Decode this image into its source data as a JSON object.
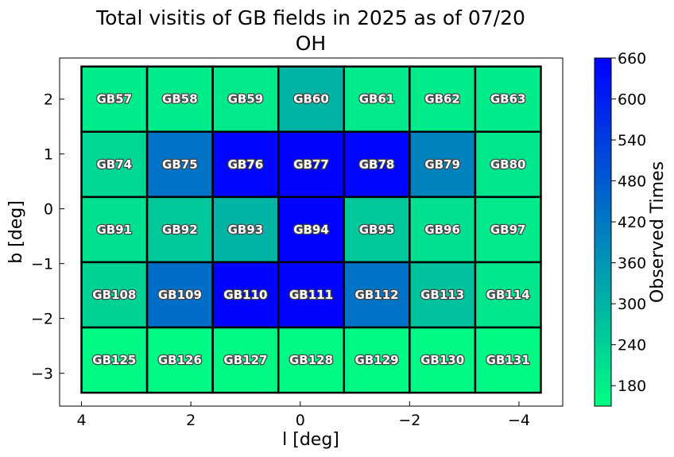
{
  "chart_data": {
    "type": "heatmap",
    "title": "Total visitis of GB fields in 2025 as of 07/20",
    "subtitle": "OH",
    "xlabel": "l [deg]",
    "ylabel": "b [deg]",
    "xlim": [
      4.4,
      -4.8
    ],
    "ylim": [
      -3.6,
      2.75
    ],
    "x_ticks": [
      4,
      2,
      0,
      -2,
      -4
    ],
    "y_ticks": [
      2,
      1,
      0,
      -1,
      -2,
      -3
    ],
    "x_tick_labels": [
      "4",
      "2",
      "0",
      "−2",
      "−4"
    ],
    "y_tick_labels": [
      "2",
      "1",
      "0",
      "−1",
      "−2",
      "−3"
    ],
    "colorbar": {
      "label": "Observed Times",
      "min": 150,
      "max": 660,
      "ticks": [
        180,
        240,
        300,
        360,
        420,
        480,
        540,
        600,
        660
      ],
      "colors": [
        "#00ff80",
        "#0000ff"
      ]
    },
    "cell_width_deg": 1.2,
    "cell_height_deg": 1.19,
    "cells": [
      {
        "name": "GB57",
        "l": 3.4,
        "b": 2.0,
        "value": 190
      },
      {
        "name": "GB58",
        "l": 2.2,
        "b": 2.0,
        "value": 190
      },
      {
        "name": "GB59",
        "l": 1.0,
        "b": 2.0,
        "value": 195
      },
      {
        "name": "GB60",
        "l": -0.2,
        "b": 2.0,
        "value": 300
      },
      {
        "name": "GB61",
        "l": -1.4,
        "b": 2.0,
        "value": 195
      },
      {
        "name": "GB62",
        "l": -2.6,
        "b": 2.0,
        "value": 190
      },
      {
        "name": "GB63",
        "l": -3.8,
        "b": 2.0,
        "value": 190
      },
      {
        "name": "GB74",
        "l": 3.4,
        "b": 0.81,
        "value": 230
      },
      {
        "name": "GB75",
        "l": 2.2,
        "b": 0.81,
        "value": 430
      },
      {
        "name": "GB76",
        "l": 1.0,
        "b": 0.81,
        "value": 650
      },
      {
        "name": "GB77",
        "l": -0.2,
        "b": 0.81,
        "value": 655
      },
      {
        "name": "GB78",
        "l": -1.4,
        "b": 0.81,
        "value": 650
      },
      {
        "name": "GB79",
        "l": -2.6,
        "b": 0.81,
        "value": 400
      },
      {
        "name": "GB80",
        "l": -3.8,
        "b": 0.81,
        "value": 200
      },
      {
        "name": "GB91",
        "l": 3.4,
        "b": -0.38,
        "value": 210
      },
      {
        "name": "GB92",
        "l": 2.2,
        "b": -0.38,
        "value": 260
      },
      {
        "name": "GB93",
        "l": 1.0,
        "b": -0.38,
        "value": 300
      },
      {
        "name": "GB94",
        "l": -0.2,
        "b": -0.38,
        "value": 655
      },
      {
        "name": "GB95",
        "l": -1.4,
        "b": -0.38,
        "value": 260
      },
      {
        "name": "GB96",
        "l": -2.6,
        "b": -0.38,
        "value": 210
      },
      {
        "name": "GB97",
        "l": -3.8,
        "b": -0.38,
        "value": 195
      },
      {
        "name": "GB108",
        "l": 3.4,
        "b": -1.57,
        "value": 240
      },
      {
        "name": "GB109",
        "l": 2.2,
        "b": -1.57,
        "value": 440
      },
      {
        "name": "GB110",
        "l": 1.0,
        "b": -1.57,
        "value": 655
      },
      {
        "name": "GB111",
        "l": -0.2,
        "b": -1.57,
        "value": 655
      },
      {
        "name": "GB112",
        "l": -1.4,
        "b": -1.57,
        "value": 430
      },
      {
        "name": "GB113",
        "l": -2.6,
        "b": -1.57,
        "value": 270
      },
      {
        "name": "GB114",
        "l": -3.8,
        "b": -1.57,
        "value": 200
      },
      {
        "name": "GB125",
        "l": 3.4,
        "b": -2.76,
        "value": 165
      },
      {
        "name": "GB126",
        "l": 2.2,
        "b": -2.76,
        "value": 165
      },
      {
        "name": "GB127",
        "l": 1.0,
        "b": -2.76,
        "value": 165
      },
      {
        "name": "GB128",
        "l": -0.2,
        "b": -2.76,
        "value": 165
      },
      {
        "name": "GB129",
        "l": -1.4,
        "b": -2.76,
        "value": 165
      },
      {
        "name": "GB130",
        "l": -2.6,
        "b": -2.76,
        "value": 165
      },
      {
        "name": "GB131",
        "l": -3.8,
        "b": -2.76,
        "value": 165
      }
    ]
  }
}
